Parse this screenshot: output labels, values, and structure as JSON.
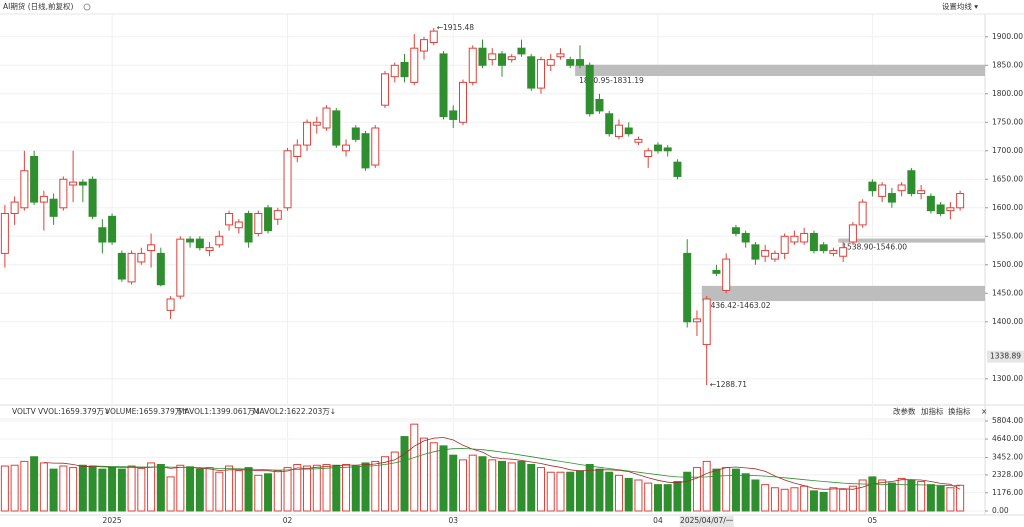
{
  "chart_data": {
    "type": "candlestick",
    "title": "AI期货 (日线,前复权)",
    "menu": "设置均线 ▾",
    "up_color": "#e0403a",
    "down_color": "#2f8f2f",
    "grid": true,
    "categories": [
      null,
      null,
      null,
      null,
      null,
      null,
      null,
      null,
      null,
      null,
      null,
      "2025",
      null,
      null,
      null,
      null,
      null,
      null,
      null,
      null,
      null,
      null,
      null,
      null,
      null,
      null,
      null,
      null,
      null,
      "02",
      null,
      null,
      null,
      null,
      null,
      null,
      null,
      null,
      null,
      null,
      null,
      null,
      null,
      null,
      null,
      null,
      "03",
      null,
      null,
      null,
      null,
      null,
      null,
      null,
      null,
      null,
      null,
      null,
      null,
      null,
      null,
      null,
      null,
      null,
      null,
      null,
      null,
      "04",
      null,
      null,
      null,
      null,
      null,
      null,
      null,
      null,
      null,
      null,
      null,
      null,
      null,
      null,
      null,
      null,
      null,
      null,
      null,
      null,
      null,
      "05",
      null,
      null,
      null,
      null,
      null,
      null,
      null,
      null,
      null
    ],
    "open": [
      1520,
      1590,
      1600,
      1690,
      1610,
      1615,
      1600,
      1640,
      1645,
      1650,
      1565,
      1585,
      1520,
      1470,
      1505,
      1525,
      1520,
      1420,
      1445,
      1545,
      1545,
      1525,
      1535,
      1570,
      1565,
      1590,
      1555,
      1600,
      1580,
      1600,
      1690,
      1710,
      1745,
      1740,
      1770,
      1700,
      1740,
      1730,
      1675,
      1780,
      1830,
      1855,
      1820,
      1875,
      1890,
      1870,
      1770,
      1750,
      1820,
      1880,
      1860,
      1870,
      1860,
      1880,
      1865,
      1810,
      1850,
      1865,
      1860,
      1860,
      1850,
      1790,
      1765,
      1725,
      1740,
      1715,
      1690,
      1710,
      1705,
      1680,
      1520,
      1400,
      1360,
      1490,
      1455,
      1565,
      1555,
      1535,
      1515,
      1510,
      1520,
      1540,
      1540,
      1555,
      1535,
      1520,
      1515,
      1540,
      1570,
      1645,
      1620,
      1625,
      1630,
      1665,
      1625,
      1620,
      1605,
      1595,
      1600
    ],
    "high": [
      1605,
      1620,
      1700,
      1700,
      1630,
      1625,
      1655,
      1700,
      1650,
      1655,
      1580,
      1590,
      1525,
      1525,
      1530,
      1555,
      1530,
      1445,
      1550,
      1550,
      1550,
      1540,
      1560,
      1595,
      1580,
      1595,
      1595,
      1605,
      1600,
      1705,
      1720,
      1755,
      1760,
      1780,
      1775,
      1720,
      1745,
      1735,
      1745,
      1840,
      1855,
      1870,
      1905,
      1900,
      1915.48,
      1875,
      1780,
      1825,
      1885,
      1895,
      1880,
      1875,
      1870,
      1895,
      1870,
      1865,
      1870,
      1880,
      1865,
      1885,
      1855,
      1800,
      1770,
      1755,
      1750,
      1725,
      1705,
      1715,
      1710,
      1685,
      1545,
      1420,
      1445,
      1500,
      1520,
      1570,
      1560,
      1540,
      1535,
      1525,
      1555,
      1560,
      1565,
      1560,
      1540,
      1530,
      1540,
      1575,
      1615,
      1650,
      1645,
      1635,
      1645,
      1670,
      1640,
      1625,
      1610,
      1610,
      1630
    ],
    "low": [
      1495,
      1570,
      1595,
      1605,
      1560,
      1570,
      1595,
      1610,
      1610,
      1580,
      1520,
      1535,
      1470,
      1465,
      1500,
      1495,
      1462,
      1405,
      1440,
      1530,
      1525,
      1515,
      1530,
      1560,
      1555,
      1530,
      1550,
      1555,
      1570,
      1595,
      1680,
      1700,
      1730,
      1735,
      1705,
      1690,
      1715,
      1665,
      1670,
      1775,
      1820,
      1820,
      1815,
      1860,
      1885,
      1755,
      1740,
      1745,
      1815,
      1845,
      1850,
      1830,
      1855,
      1865,
      1805,
      1800,
      1840,
      1860,
      1845,
      1845,
      1760,
      1765,
      1725,
      1720,
      1725,
      1710,
      1670,
      1695,
      1690,
      1650,
      1390,
      1375,
      1288.71,
      1480,
      1450,
      1550,
      1530,
      1500,
      1505,
      1505,
      1510,
      1535,
      1535,
      1520,
      1520,
      1515,
      1505,
      1535,
      1565,
      1620,
      1610,
      1600,
      1620,
      1620,
      1615,
      1590,
      1585,
      1580,
      1595
    ],
    "close": [
      1590,
      1610,
      1665,
      1610,
      1620,
      1585,
      1650,
      1645,
      1640,
      1585,
      1540,
      1540,
      1475,
      1520,
      1520,
      1535,
      1465,
      1440,
      1545,
      1540,
      1530,
      1530,
      1550,
      1590,
      1575,
      1540,
      1590,
      1560,
      1595,
      1700,
      1710,
      1750,
      1750,
      1775,
      1710,
      1710,
      1720,
      1670,
      1740,
      1835,
      1850,
      1830,
      1880,
      1895,
      1910,
      1760,
      1755,
      1820,
      1880,
      1850,
      1870,
      1850,
      1865,
      1870,
      1810,
      1860,
      1860,
      1870,
      1850,
      1850,
      1765,
      1770,
      1730,
      1745,
      1730,
      1720,
      1700,
      1700,
      1700,
      1655,
      1400,
      1405,
      1440,
      1485,
      1510,
      1555,
      1540,
      1510,
      1525,
      1520,
      1550,
      1550,
      1555,
      1525,
      1525,
      1525,
      1530,
      1570,
      1610,
      1630,
      1640,
      1610,
      1640,
      1625,
      1630,
      1595,
      1590,
      1600,
      1625
    ],
    "ylim": [
      1254,
      1940
    ],
    "yticks": [
      {
        "value": 1300,
        "label": "1300.00"
      },
      {
        "value": 1400,
        "label": "1400.00"
      },
      {
        "value": 1450,
        "label": "1450.00"
      },
      {
        "value": 1500,
        "label": "1500.00"
      },
      {
        "value": 1550,
        "label": "1550.00"
      },
      {
        "value": 1600,
        "label": "1600.00"
      },
      {
        "value": 1650,
        "label": "1650.00"
      },
      {
        "value": 1700,
        "label": "1700.00"
      },
      {
        "value": 1750,
        "label": "1750.00"
      },
      {
        "value": 1800,
        "label": "1800.00"
      },
      {
        "value": 1850,
        "label": "1850.00"
      },
      {
        "value": 1900,
        "label": "1900.00"
      }
    ],
    "crosshair_price": 1338.89,
    "crosshair_date": {
      "label": "2025/04/07/一",
      "index": 72
    },
    "zones": [
      {
        "label": "1850.95-1831.19",
        "low": 1831.19,
        "high": 1850.95,
        "start": 59,
        "color": "#bdbdbd"
      },
      {
        "label": "1436.42-1463.02",
        "low": 1436.42,
        "high": 1463.02,
        "start": 72,
        "color": "#bdbdbd"
      },
      {
        "label": "1538.90-1546.00",
        "low": 1538.9,
        "high": 1546.0,
        "start": 86,
        "color": "#bdbdbd"
      }
    ],
    "annotations": [
      {
        "text": "←1915.48",
        "value": 1915.48,
        "index": 44,
        "color": "#d2691e"
      },
      {
        "text": "←1288.71",
        "value": 1288.71,
        "index": 72,
        "color": "#d2691e"
      }
    ],
    "volume": {
      "header": [
        {
          "text": "VOLTV",
          "color": "#222222"
        },
        {
          "text": "VVOL:1659.379万↓",
          "color": "#1f3fbf"
        },
        {
          "text": "VOLUME:1659.379万↑",
          "color": "#888888"
        },
        {
          "text": "MAVOL1:1399.061万↓",
          "color": "#a52a2a"
        },
        {
          "text": "MAVOL2:1622.203万↓",
          "color": "#2f8f2f"
        }
      ],
      "buttons": [
        "改参数",
        "加指标",
        "换指标",
        "×"
      ],
      "values": [
        2900,
        2950,
        3200,
        3500,
        3100,
        2700,
        2900,
        2800,
        2950,
        2900,
        2700,
        2800,
        2700,
        2900,
        2750,
        3100,
        3000,
        2200,
        2950,
        2850,
        2700,
        2800,
        2500,
        2900,
        2600,
        2800,
        2300,
        2400,
        2600,
        2800,
        3000,
        2900,
        2950,
        3000,
        2950,
        3000,
        2900,
        3100,
        3200,
        3500,
        3800,
        4800,
        5600,
        4700,
        4400,
        4200,
        3600,
        3300,
        3600,
        3500,
        3300,
        3200,
        3100,
        3200,
        3000,
        2800,
        2500,
        2500,
        2500,
        2600,
        3000,
        2700,
        2500,
        2300,
        2100,
        2000,
        1800,
        1700,
        1700,
        1900,
        2500,
        2800,
        3200,
        2700,
        2800,
        2700,
        2400,
        2000,
        1700,
        1500,
        1400,
        1500,
        1600,
        1300,
        1200,
        1500,
        1400,
        1600,
        2000,
        2200,
        2000,
        1800,
        2100,
        2000,
        1900,
        1700,
        1600,
        1500,
        1659.379
      ],
      "series": [
        {
          "name": "MAVOL1",
          "color": "#a52a2a",
          "values": [
            null,
            null,
            null,
            null,
            3130,
            3090,
            3080,
            3000,
            2870,
            2880,
            2850,
            2830,
            2810,
            2810,
            2780,
            2810,
            2860,
            2750,
            2810,
            2820,
            2760,
            2710,
            2610,
            2650,
            2660,
            2650,
            2600,
            2600,
            2520,
            2580,
            2780,
            2740,
            2820,
            2870,
            2930,
            2960,
            2960,
            2990,
            3030,
            3140,
            3300,
            3680,
            4180,
            4520,
            4700,
            4740,
            4580,
            4240,
            3980,
            3800,
            3460,
            3380,
            3340,
            3260,
            3160,
            3060,
            2920,
            2820,
            2660,
            2580,
            2620,
            2660,
            2660,
            2620,
            2540,
            2340,
            2140,
            1980,
            1860,
            1820,
            1920,
            2120,
            2420,
            2620,
            2800,
            2840,
            2780,
            2720,
            2560,
            2260,
            2000,
            1800,
            1640,
            1460,
            1400,
            1420,
            1440,
            1400,
            1540,
            1740,
            1840,
            1900,
            2020,
            2020,
            2000,
            1900,
            1780,
            1720,
            1399.061
          ]
        },
        {
          "name": "MAVOL2",
          "color": "#2f8f2f",
          "values": [
            null,
            null,
            null,
            null,
            null,
            null,
            null,
            null,
            null,
            2900,
            2880,
            2870,
            2860,
            2850,
            2840,
            2840,
            2850,
            2830,
            2820,
            2810,
            2790,
            2770,
            2740,
            2730,
            2720,
            2710,
            2680,
            2660,
            2640,
            2650,
            2680,
            2700,
            2720,
            2760,
            2790,
            2820,
            2850,
            2880,
            2930,
            3000,
            3100,
            3250,
            3450,
            3650,
            3820,
            3950,
            4020,
            4030,
            4000,
            3950,
            3880,
            3800,
            3700,
            3600,
            3500,
            3400,
            3300,
            3200,
            3100,
            3000,
            2900,
            2820,
            2740,
            2660,
            2580,
            2500,
            2420,
            2340,
            2260,
            2200,
            2180,
            2180,
            2200,
            2240,
            2280,
            2300,
            2300,
            2280,
            2250,
            2200,
            2140,
            2080,
            2020,
            1960,
            1900,
            1850,
            1800,
            1760,
            1740,
            1730,
            1720,
            1710,
            1700,
            1690,
            1680,
            1670,
            1660,
            1640,
            1622.203
          ]
        }
      ],
      "ylim": [
        0,
        5804
      ],
      "yticks": [
        {
          "value": 0,
          "label": "0.00"
        },
        {
          "value": 1176,
          "label": "1176.00"
        },
        {
          "value": 2328,
          "label": "2328.00"
        },
        {
          "value": 3452,
          "label": "3452.00"
        },
        {
          "value": 4640,
          "label": "4640.00"
        },
        {
          "value": 5804,
          "label": "5804.00"
        }
      ]
    }
  }
}
